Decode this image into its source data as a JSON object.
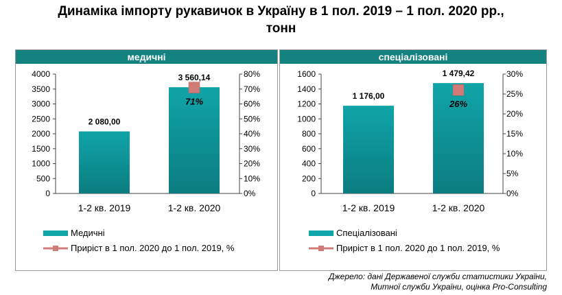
{
  "title_line1": "Динаміка імпорту рукавичок в Україну в 1 пол. 2019 – 1 пол. 2020 рр.,",
  "title_line2": "тонн",
  "source_line1": "Джерело: дані Державеної служби статистики України,",
  "source_line2": "Митної служби України, оцінка Pro-Consulting",
  "colors": {
    "header": "#14837f",
    "bar": "#10a5a8",
    "marker": "#d07b78"
  },
  "chart_data": [
    {
      "type": "bar",
      "title": "медичні",
      "categories": [
        "1-2 кв. 2019",
        "1-2 кв. 2020"
      ],
      "series": [
        {
          "name": "Медичні",
          "values": [
            2080.0,
            3560.14
          ],
          "labels": [
            "2 080,00",
            "3 560,14"
          ]
        }
      ],
      "growth": {
        "name": "Приріст в 1 пол. 2020 до 1 пол. 2019, %",
        "value": 0.71,
        "label": "71%"
      },
      "ylim": [
        0,
        4000
      ],
      "yticks": [
        "4000",
        "3500",
        "3000",
        "2500",
        "2000",
        "1500",
        "1000",
        "500",
        "0"
      ],
      "y2lim": [
        0,
        0.8
      ],
      "y2ticks": [
        "80%",
        "70%",
        "60%",
        "50%",
        "40%",
        "30%",
        "20%",
        "10%",
        "0%"
      ],
      "legend_position": "bottom",
      "grid": false
    },
    {
      "type": "bar",
      "title": "спеціалізовані",
      "categories": [
        "1-2 кв. 2019",
        "1-2 кв. 2020"
      ],
      "series": [
        {
          "name": "Спеціалізовані",
          "values": [
            1176.0,
            1479.42
          ],
          "labels": [
            "1 176,00",
            "1 479,42"
          ]
        }
      ],
      "growth": {
        "name": "Приріст в 1 пол. 2020 до 1 пол. 2019, %",
        "value": 0.26,
        "label": "26%"
      },
      "ylim": [
        0,
        1600
      ],
      "yticks": [
        "1600",
        "1400",
        "1200",
        "1000",
        "800",
        "600",
        "400",
        "200",
        "0"
      ],
      "y2lim": [
        0,
        0.3
      ],
      "y2ticks": [
        "30%",
        "25%",
        "20%",
        "15%",
        "10%",
        "5%",
        "0%"
      ],
      "legend_position": "bottom",
      "grid": false
    }
  ]
}
